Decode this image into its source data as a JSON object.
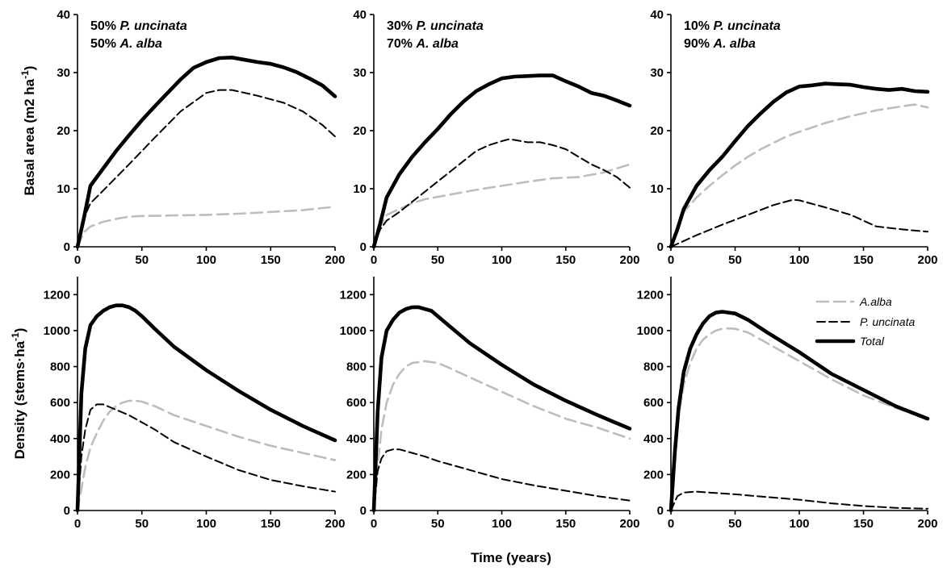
{
  "colors": {
    "total": "#000000",
    "p_uncinata": "#000000",
    "a_alba": "#bdbdbd"
  },
  "x_axis_label": "Time (years)",
  "chart_data": [
    {
      "type": "line",
      "title_lines": [
        [
          "50% ",
          "P. uncinata"
        ],
        [
          "50% ",
          "A. alba"
        ]
      ],
      "ylabel": "Basal area (m2 ha-1)",
      "xlim": [
        0,
        200
      ],
      "ylim": [
        0,
        40
      ],
      "xticks": [
        0,
        50,
        100,
        150,
        200
      ],
      "yticks": [
        0,
        10,
        20,
        30,
        40
      ],
      "series": [
        {
          "key": "a_alba",
          "x": [
            0,
            5,
            10,
            20,
            30,
            40,
            50,
            75,
            100,
            125,
            150,
            175,
            200
          ],
          "values": [
            0,
            2.5,
            3.5,
            4.3,
            4.8,
            5.2,
            5.3,
            5.4,
            5.5,
            5.7,
            6.0,
            6.3,
            6.9
          ]
        },
        {
          "key": "p_uncinata",
          "x": [
            0,
            5,
            10,
            20,
            40,
            60,
            80,
            100,
            110,
            120,
            140,
            160,
            175,
            190,
            200
          ],
          "values": [
            0,
            5,
            7.5,
            9.7,
            14.2,
            18.8,
            23.3,
            26.5,
            27.0,
            27.0,
            26.0,
            24.8,
            23.3,
            21.0,
            19.0
          ]
        },
        {
          "key": "total",
          "x": [
            0,
            5,
            10,
            20,
            30,
            40,
            50,
            60,
            70,
            80,
            90,
            100,
            110,
            120,
            130,
            140,
            150,
            160,
            170,
            180,
            190,
            200
          ],
          "values": [
            0,
            5,
            10.5,
            13.5,
            16.5,
            19.2,
            21.8,
            24.2,
            26.5,
            28.8,
            30.8,
            31.8,
            32.5,
            32.6,
            32.2,
            31.8,
            31.5,
            30.9,
            30.1,
            29.0,
            27.8,
            25.9
          ]
        }
      ]
    },
    {
      "type": "line",
      "title_lines": [
        [
          "30% ",
          "P. uncinata"
        ],
        [
          "70% ",
          "A. alba"
        ]
      ],
      "ylabel": "",
      "xlim": [
        0,
        200
      ],
      "ylim": [
        0,
        40
      ],
      "xticks": [
        0,
        50,
        100,
        150,
        200
      ],
      "yticks": [
        0,
        10,
        20,
        30,
        40
      ],
      "series": [
        {
          "key": "a_alba",
          "x": [
            0,
            5,
            10,
            20,
            30,
            40,
            60,
            80,
            100,
            120,
            140,
            160,
            180,
            200
          ],
          "values": [
            0,
            3.5,
            5.5,
            6.5,
            7.5,
            8.2,
            9.0,
            9.8,
            10.5,
            11.2,
            11.8,
            12.0,
            12.8,
            14.2
          ]
        },
        {
          "key": "p_uncinata",
          "x": [
            0,
            5,
            10,
            20,
            40,
            60,
            80,
            90,
            100,
            105,
            110,
            120,
            130,
            140,
            150,
            160,
            170,
            180,
            190,
            200
          ],
          "values": [
            0,
            3,
            4.5,
            6.0,
            9.5,
            13.0,
            16.5,
            17.5,
            18.2,
            18.5,
            18.4,
            18.0,
            18.0,
            17.5,
            16.8,
            15.5,
            14.2,
            13.2,
            12.0,
            10.2
          ]
        },
        {
          "key": "total",
          "x": [
            0,
            5,
            10,
            20,
            30,
            40,
            50,
            60,
            70,
            80,
            90,
            100,
            110,
            120,
            130,
            140,
            150,
            160,
            170,
            180,
            190,
            200
          ],
          "values": [
            0,
            4,
            8.5,
            12.5,
            15.5,
            18.0,
            20.3,
            22.8,
            25.0,
            26.8,
            28.0,
            29.0,
            29.3,
            29.4,
            29.5,
            29.5,
            28.5,
            27.6,
            26.5,
            26.0,
            25.2,
            24.3
          ]
        }
      ]
    },
    {
      "type": "line",
      "title_lines": [
        [
          "10% ",
          "P. uncinata"
        ],
        [
          "90% ",
          "A. alba"
        ]
      ],
      "ylabel": "",
      "xlim": [
        0,
        200
      ],
      "ylim": [
        0,
        40
      ],
      "xticks": [
        0,
        50,
        100,
        150,
        200
      ],
      "yticks": [
        0,
        10,
        20,
        30,
        40
      ],
      "series": [
        {
          "key": "a_alba",
          "x": [
            0,
            5,
            10,
            20,
            30,
            40,
            50,
            60,
            70,
            80,
            90,
            100,
            120,
            140,
            160,
            180,
            190,
            200
          ],
          "values": [
            0,
            3.5,
            6,
            8.5,
            10.5,
            12.3,
            14.0,
            15.5,
            16.8,
            17.9,
            19.0,
            19.8,
            21.3,
            22.5,
            23.5,
            24.2,
            24.5,
            24.0
          ]
        },
        {
          "key": "p_uncinata",
          "x": [
            0,
            10,
            20,
            40,
            60,
            80,
            95,
            100,
            120,
            140,
            160,
            180,
            200
          ],
          "values": [
            0,
            1.0,
            2.0,
            3.8,
            5.5,
            7.2,
            8.1,
            8.0,
            6.8,
            5.5,
            3.5,
            3.0,
            2.6
          ]
        },
        {
          "key": "total",
          "x": [
            0,
            5,
            10,
            20,
            30,
            40,
            50,
            60,
            70,
            80,
            90,
            100,
            110,
            120,
            130,
            140,
            150,
            160,
            170,
            180,
            190,
            200
          ],
          "values": [
            0,
            3,
            6.5,
            10.5,
            13.2,
            15.5,
            18.2,
            20.8,
            23.0,
            25.0,
            26.6,
            27.6,
            27.8,
            28.1,
            28.0,
            27.9,
            27.5,
            27.2,
            27.0,
            27.2,
            26.8,
            26.7
          ]
        }
      ]
    },
    {
      "type": "line",
      "ylabel": "Density (stems·ha-1)",
      "xlim": [
        0,
        200
      ],
      "ylim": [
        0,
        1300
      ],
      "xticks": [
        0,
        50,
        100,
        150,
        200
      ],
      "yticks": [
        0,
        200,
        400,
        600,
        800,
        1000,
        1200
      ],
      "series": [
        {
          "key": "a_alba",
          "x": [
            0,
            3,
            6,
            10,
            15,
            20,
            25,
            30,
            35,
            40,
            45,
            50,
            60,
            75,
            100,
            125,
            150,
            175,
            200
          ],
          "values": [
            0,
            120,
            240,
            350,
            430,
            500,
            550,
            580,
            600,
            610,
            610,
            605,
            580,
            530,
            470,
            410,
            360,
            320,
            280
          ]
        },
        {
          "key": "p_uncinata",
          "x": [
            0,
            3,
            6,
            10,
            15,
            20,
            30,
            40,
            50,
            60,
            75,
            100,
            125,
            150,
            175,
            200
          ],
          "values": [
            0,
            300,
            450,
            560,
            590,
            590,
            560,
            530,
            490,
            450,
            380,
            300,
            225,
            170,
            135,
            105
          ]
        },
        {
          "key": "total",
          "x": [
            0,
            3,
            6,
            10,
            15,
            20,
            25,
            30,
            35,
            40,
            45,
            50,
            60,
            75,
            100,
            125,
            150,
            175,
            200
          ],
          "values": [
            0,
            650,
            900,
            1030,
            1080,
            1110,
            1130,
            1140,
            1140,
            1130,
            1110,
            1080,
            1010,
            910,
            780,
            665,
            560,
            470,
            390
          ]
        }
      ]
    },
    {
      "type": "line",
      "ylabel": "",
      "xlim": [
        0,
        200
      ],
      "ylim": [
        0,
        1300
      ],
      "xticks": [
        0,
        50,
        100,
        150,
        200
      ],
      "yticks": [
        0,
        200,
        400,
        600,
        800,
        1000,
        1200
      ],
      "series": [
        {
          "key": "a_alba",
          "x": [
            0,
            3,
            6,
            10,
            15,
            20,
            25,
            30,
            35,
            40,
            45,
            50,
            60,
            75,
            100,
            125,
            150,
            175,
            200
          ],
          "values": [
            0,
            250,
            450,
            600,
            700,
            760,
            800,
            820,
            825,
            830,
            825,
            820,
            790,
            740,
            660,
            580,
            510,
            460,
            400
          ]
        },
        {
          "key": "p_uncinata",
          "x": [
            0,
            3,
            6,
            10,
            15,
            20,
            30,
            40,
            50,
            60,
            75,
            100,
            125,
            150,
            175,
            200
          ],
          "values": [
            0,
            220,
            290,
            330,
            340,
            340,
            320,
            300,
            275,
            255,
            225,
            175,
            140,
            110,
            80,
            55
          ]
        },
        {
          "key": "total",
          "x": [
            0,
            3,
            6,
            10,
            15,
            20,
            25,
            30,
            35,
            40,
            45,
            50,
            60,
            75,
            100,
            125,
            150,
            175,
            200
          ],
          "values": [
            0,
            550,
            850,
            1000,
            1060,
            1100,
            1120,
            1130,
            1130,
            1120,
            1110,
            1080,
            1020,
            930,
            810,
            700,
            610,
            530,
            455
          ]
        }
      ]
    },
    {
      "type": "line",
      "ylabel": "",
      "xlim": [
        0,
        200
      ],
      "ylim": [
        0,
        1300
      ],
      "xticks": [
        0,
        50,
        100,
        150,
        200
      ],
      "yticks": [
        0,
        200,
        400,
        600,
        800,
        1000,
        1200
      ],
      "series": [
        {
          "key": "a_alba",
          "x": [
            0,
            3,
            6,
            10,
            15,
            20,
            25,
            30,
            35,
            40,
            45,
            50,
            60,
            75,
            100,
            125,
            150,
            175,
            200
          ],
          "values": [
            0,
            300,
            520,
            700,
            820,
            900,
            950,
            980,
            1000,
            1010,
            1012,
            1010,
            990,
            930,
            830,
            730,
            640,
            570,
            510
          ]
        },
        {
          "key": "p_uncinata",
          "x": [
            0,
            5,
            10,
            20,
            30,
            50,
            75,
            100,
            125,
            150,
            175,
            200
          ],
          "values": [
            0,
            80,
            100,
            105,
            100,
            90,
            75,
            60,
            40,
            25,
            15,
            10
          ]
        },
        {
          "key": "total",
          "x": [
            0,
            3,
            6,
            10,
            15,
            20,
            25,
            30,
            35,
            40,
            45,
            50,
            60,
            75,
            100,
            125,
            150,
            175,
            200
          ],
          "values": [
            0,
            320,
            570,
            770,
            900,
            980,
            1040,
            1080,
            1100,
            1105,
            1100,
            1095,
            1060,
            990,
            880,
            760,
            670,
            580,
            510
          ]
        }
      ]
    }
  ],
  "legend": [
    {
      "key": "a_alba",
      "label": "A.alba"
    },
    {
      "key": "p_uncinata",
      "label": "P. uncinata"
    },
    {
      "key": "total",
      "label": "Total"
    }
  ]
}
